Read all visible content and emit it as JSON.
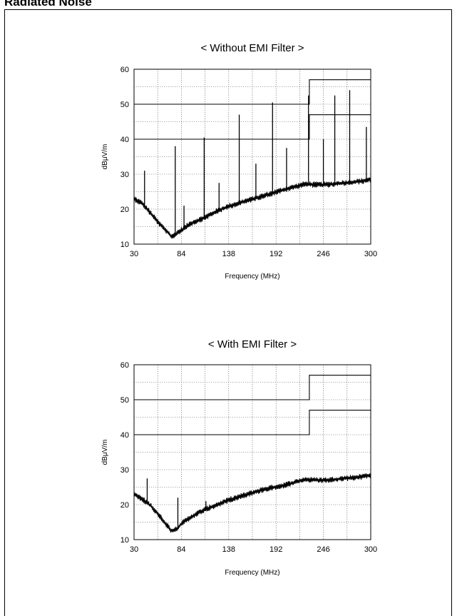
{
  "page": {
    "heading": "Radiated Noise"
  },
  "chart_data": [
    {
      "type": "line",
      "title": "< Without EMI Filter >",
      "xlabel": "Frequency (MHz)",
      "ylabel": "dBμV/m",
      "xlim": [
        30,
        300
      ],
      "ylim": [
        10,
        60
      ],
      "xticks": [
        30,
        84,
        138,
        192,
        246,
        300
      ],
      "yticks": [
        10,
        20,
        30,
        40,
        50,
        60
      ],
      "grid": true,
      "series": [
        {
          "style": "limit",
          "x": [
            30,
            230,
            230,
            300
          ],
          "y": [
            50,
            50,
            57,
            57
          ]
        },
        {
          "style": "limit",
          "x": [
            30,
            230,
            230,
            300
          ],
          "y": [
            40,
            40,
            47,
            47
          ]
        },
        {
          "style": "noise",
          "noise_amplitude": 0.8,
          "x": [
            30,
            40,
            50,
            60,
            68,
            73,
            78,
            84,
            95,
            110,
            125,
            140,
            160,
            180,
            200,
            215,
            225,
            235,
            250,
            270,
            290,
            300
          ],
          "y": [
            23,
            21.5,
            18.5,
            15.5,
            13.5,
            12,
            13,
            14,
            16,
            17.5,
            19.5,
            21,
            22.5,
            24,
            25.5,
            26.5,
            27.2,
            27,
            27,
            27.5,
            28,
            28.5
          ]
        },
        {
          "style": "spikes",
          "x": [
            42,
            77,
            87,
            110,
            127,
            150,
            169,
            188,
            204,
            229,
            246,
            259,
            276,
            295
          ],
          "y": [
            31,
            38,
            21,
            40.5,
            27.5,
            47,
            33,
            50.5,
            37.5,
            52.5,
            40,
            52.5,
            54,
            43.5
          ]
        }
      ]
    },
    {
      "type": "line",
      "title": "< With EMI Filter >",
      "xlabel": "Frequency (MHz)",
      "ylabel": "dBμV/m",
      "xlim": [
        30,
        300
      ],
      "ylim": [
        10,
        60
      ],
      "xticks": [
        30,
        84,
        138,
        192,
        246,
        300
      ],
      "yticks": [
        10,
        20,
        30,
        40,
        50,
        60
      ],
      "grid": true,
      "series": [
        {
          "style": "limit",
          "x": [
            30,
            230,
            230,
            300
          ],
          "y": [
            50,
            50,
            57,
            57
          ]
        },
        {
          "style": "limit",
          "x": [
            30,
            230,
            230,
            300
          ],
          "y": [
            40,
            40,
            47,
            47
          ]
        },
        {
          "style": "noise",
          "noise_amplitude": 0.8,
          "x": [
            30,
            40,
            50,
            60,
            68,
            73,
            78,
            84,
            95,
            110,
            125,
            140,
            160,
            180,
            200,
            215,
            225,
            235,
            250,
            270,
            290,
            300
          ],
          "y": [
            23,
            21.5,
            19.5,
            16.5,
            14,
            12.5,
            13,
            14.5,
            16.5,
            18.5,
            20,
            21.5,
            23,
            24.5,
            25.5,
            26.5,
            27.2,
            27,
            27,
            27.5,
            28,
            28.5
          ]
        },
        {
          "style": "spikes",
          "x": [
            45,
            80,
            112
          ],
          "y": [
            27.5,
            22,
            21
          ]
        }
      ]
    }
  ]
}
